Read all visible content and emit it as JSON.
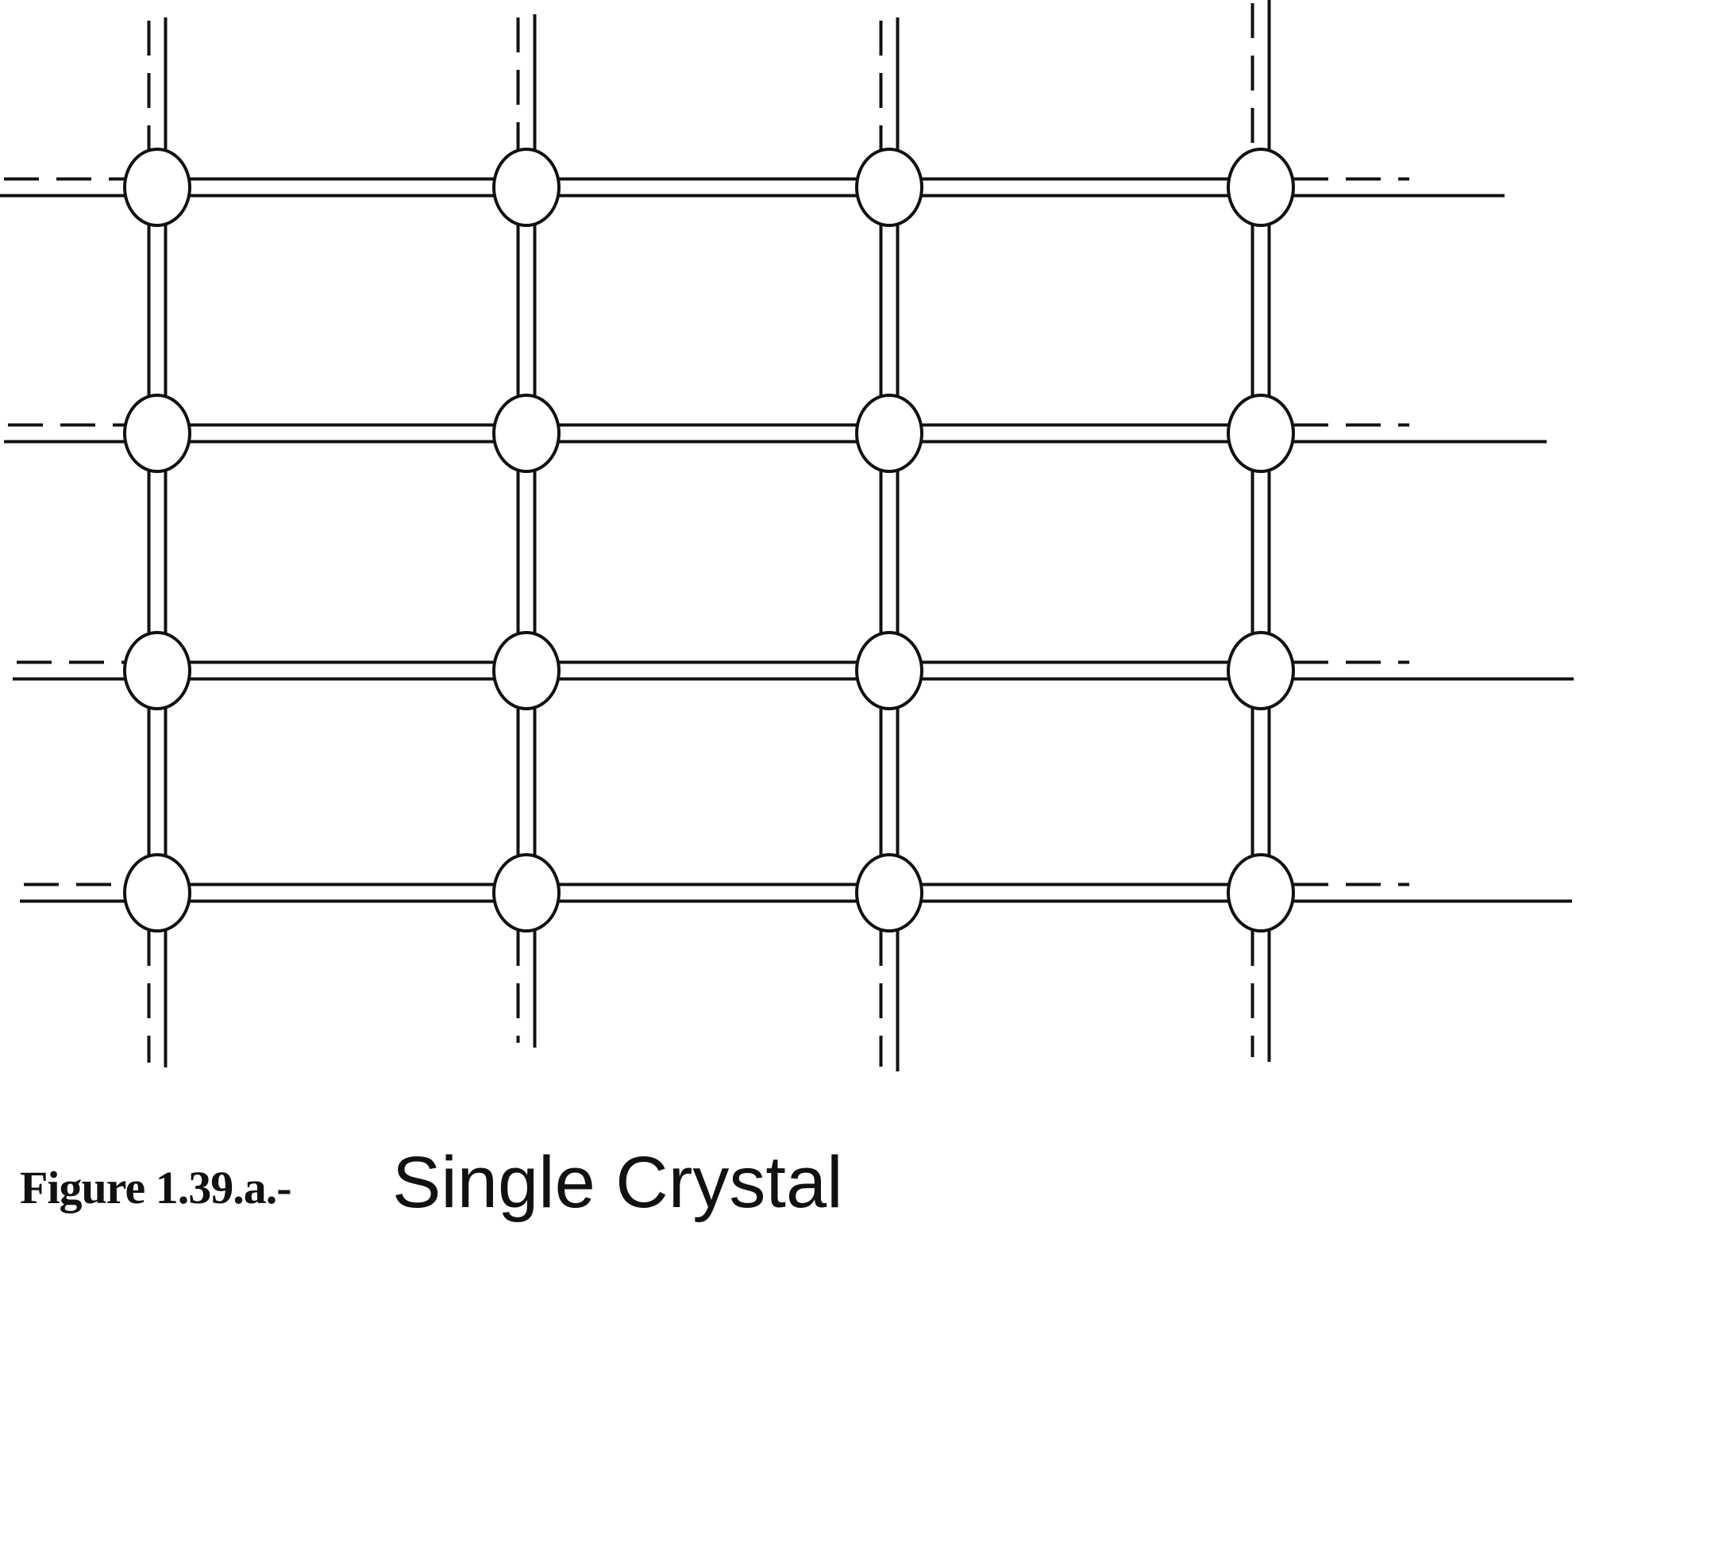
{
  "figure": {
    "caption_number": "Figure 1.39.a.-",
    "caption_title": "Single Crystal",
    "lattice": {
      "rows": 4,
      "columns": 4,
      "atom_shape": "circle",
      "bond_style": "double-line",
      "boundary_style": "dashed"
    },
    "colors": {
      "ink": "#111111",
      "background": "#ffffff"
    }
  }
}
